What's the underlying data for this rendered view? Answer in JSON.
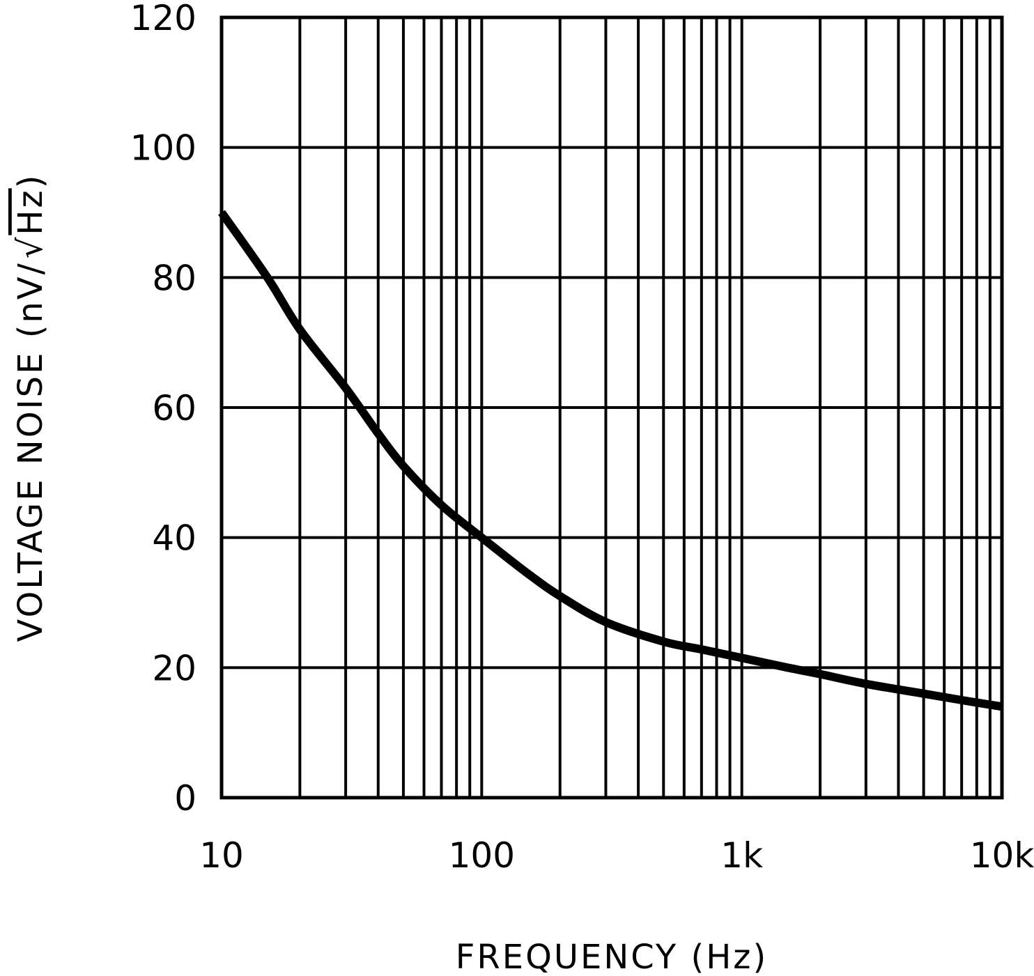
{
  "chart_data": {
    "type": "line",
    "title": "",
    "xlabel": "FREQUENCY (Hz)",
    "ylabel": "VOLTAGE NOISE (nV/√Hz)",
    "xscale": "log",
    "xlim": [
      10,
      10000
    ],
    "ylim": [
      0,
      120
    ],
    "grid": true,
    "legend": null,
    "x_ticks": [
      10,
      100,
      1000,
      10000
    ],
    "x_tick_labels": [
      "10",
      "100",
      "1k",
      "10k"
    ],
    "y_ticks": [
      0,
      20,
      40,
      60,
      80,
      100,
      120
    ],
    "y_tick_labels": [
      "0",
      "20",
      "40",
      "60",
      "80",
      "100",
      "120"
    ],
    "series": [
      {
        "name": "Voltage Noise",
        "color": "#000000",
        "x": [
          10,
          15,
          20,
          30,
          40,
          50,
          70,
          100,
          150,
          200,
          300,
          500,
          700,
          1000,
          1500,
          2000,
          3000,
          5000,
          7000,
          10000
        ],
        "y": [
          90,
          80,
          72,
          63,
          56,
          51,
          45,
          40,
          34.5,
          31,
          27,
          24,
          22.8,
          21.5,
          20,
          19,
          17.5,
          16,
          15,
          14
        ]
      }
    ]
  },
  "axes": {
    "xlabel": "FREQUENCY (Hz)",
    "ylabel_prefix": "VOLTAGE NOISE (nV/",
    "ylabel_radicand": "Hz",
    "ylabel_suffix": ")"
  }
}
